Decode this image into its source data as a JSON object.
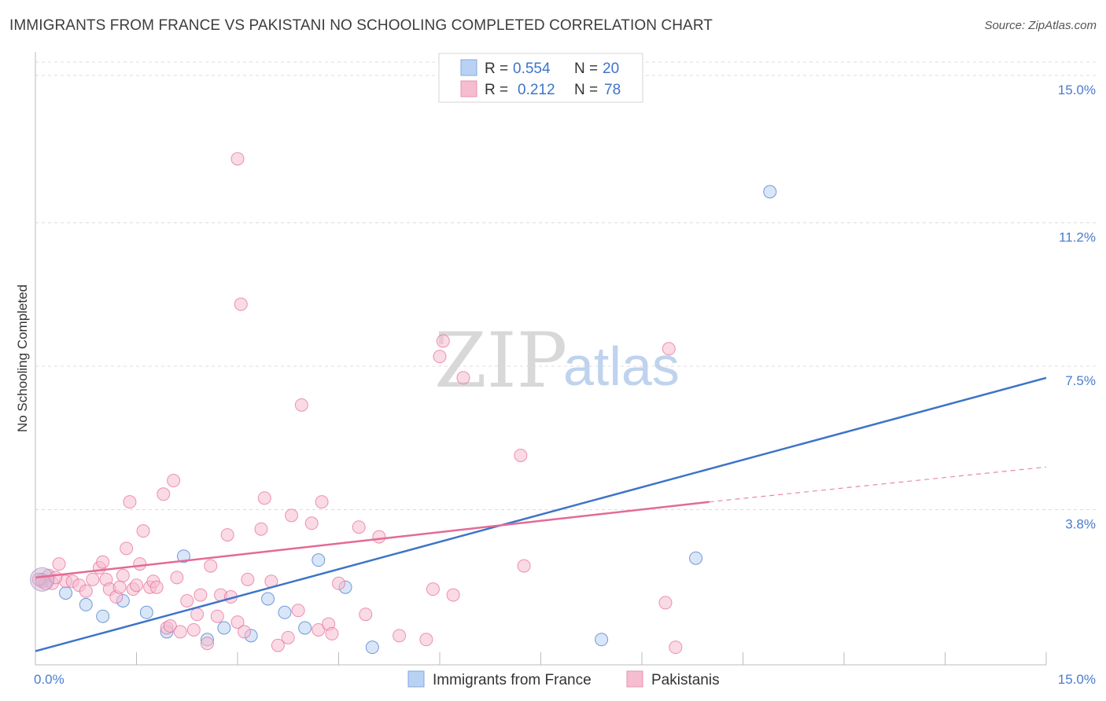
{
  "title": "IMMIGRANTS FROM FRANCE VS PAKISTANI NO SCHOOLING COMPLETED CORRELATION CHART",
  "source": "Source: ZipAtlas.com",
  "watermark": {
    "zip": "ZIP",
    "atlas": "atlas"
  },
  "colors": {
    "blue": "#3d74c8",
    "blue_fill": "#b9d2f3",
    "pink": "#e46a95",
    "pink_fill": "#f6bcd0",
    "grid": "#dcdcdc"
  },
  "legend": {
    "r_label": "R =",
    "n_label": "N =",
    "series": [
      {
        "r": "0.554",
        "n": "20"
      },
      {
        "r": "0.212",
        "n": "78"
      }
    ]
  },
  "chart_data": {
    "type": "scatter",
    "xlabel": "",
    "ylabel": "No Schooling Completed",
    "xlim": [
      0,
      15
    ],
    "ylim": [
      0,
      15
    ],
    "x_tick_labels": [
      {
        "value": 0,
        "label": "0.0%"
      },
      {
        "value": 15,
        "label": "15.0%"
      }
    ],
    "y_tick_labels": [
      {
        "value": 3.8,
        "label": "3.8%"
      },
      {
        "value": 7.5,
        "label": "7.5%"
      },
      {
        "value": 11.2,
        "label": "11.2%"
      },
      {
        "value": 15.0,
        "label": "15.0%"
      }
    ],
    "series": [
      {
        "name": "Immigrants from France",
        "color": "blue",
        "points": [
          [
            0.1,
            2.0
          ],
          [
            0.45,
            1.65
          ],
          [
            0.75,
            1.35
          ],
          [
            1.0,
            1.05
          ],
          [
            1.3,
            1.45
          ],
          [
            1.65,
            1.15
          ],
          [
            1.95,
            0.65
          ],
          [
            2.2,
            2.6
          ],
          [
            2.55,
            0.45
          ],
          [
            2.8,
            0.75
          ],
          [
            3.2,
            0.55
          ],
          [
            3.45,
            1.5
          ],
          [
            3.7,
            1.15
          ],
          [
            4.0,
            0.75
          ],
          [
            4.2,
            2.5
          ],
          [
            4.6,
            1.8
          ],
          [
            5.0,
            0.25
          ],
          [
            8.4,
            0.45
          ],
          [
            9.8,
            2.55
          ],
          [
            10.9,
            12.0
          ]
        ],
        "trend": {
          "x0": 0,
          "y0": 0.15,
          "x1": 15,
          "y1": 7.2
        }
      },
      {
        "name": "Pakistanis",
        "color": "pink",
        "points": [
          [
            0.1,
            1.95
          ],
          [
            0.2,
            2.1
          ],
          [
            0.25,
            1.9
          ],
          [
            0.35,
            2.4
          ],
          [
            0.45,
            1.95
          ],
          [
            0.55,
            1.95
          ],
          [
            0.65,
            1.85
          ],
          [
            0.75,
            1.7
          ],
          [
            0.85,
            2.0
          ],
          [
            0.95,
            2.3
          ],
          [
            1.0,
            2.45
          ],
          [
            1.05,
            2.0
          ],
          [
            1.1,
            1.75
          ],
          [
            1.2,
            1.55
          ],
          [
            1.25,
            1.8
          ],
          [
            1.35,
            2.8
          ],
          [
            1.3,
            2.1
          ],
          [
            1.4,
            4.0
          ],
          [
            1.45,
            1.75
          ],
          [
            1.5,
            1.85
          ],
          [
            1.55,
            2.4
          ],
          [
            1.6,
            3.25
          ],
          [
            1.7,
            1.8
          ],
          [
            1.75,
            1.95
          ],
          [
            1.8,
            1.8
          ],
          [
            1.9,
            4.2
          ],
          [
            1.95,
            0.75
          ],
          [
            2.0,
            0.8
          ],
          [
            2.05,
            4.55
          ],
          [
            2.1,
            2.05
          ],
          [
            2.15,
            0.65
          ],
          [
            2.25,
            1.45
          ],
          [
            2.35,
            0.7
          ],
          [
            2.4,
            1.1
          ],
          [
            2.45,
            1.6
          ],
          [
            2.55,
            0.35
          ],
          [
            2.6,
            2.35
          ],
          [
            2.7,
            1.05
          ],
          [
            2.75,
            1.6
          ],
          [
            2.85,
            3.15
          ],
          [
            2.9,
            1.55
          ],
          [
            3.0,
            0.9
          ],
          [
            3.1,
            0.65
          ],
          [
            3.0,
            12.85
          ],
          [
            3.05,
            9.1
          ],
          [
            3.15,
            2.0
          ],
          [
            3.35,
            3.3
          ],
          [
            3.4,
            4.1
          ],
          [
            3.5,
            1.95
          ],
          [
            3.6,
            0.3
          ],
          [
            3.75,
            0.5
          ],
          [
            3.8,
            3.65
          ],
          [
            3.9,
            1.2
          ],
          [
            3.95,
            6.5
          ],
          [
            4.1,
            3.45
          ],
          [
            4.2,
            0.7
          ],
          [
            4.25,
            4.0
          ],
          [
            4.35,
            0.85
          ],
          [
            4.4,
            0.6
          ],
          [
            4.5,
            1.9
          ],
          [
            4.8,
            3.35
          ],
          [
            4.9,
            1.1
          ],
          [
            5.1,
            3.1
          ],
          [
            5.4,
            0.55
          ],
          [
            5.8,
            0.45
          ],
          [
            5.9,
            1.75
          ],
          [
            6.0,
            7.75
          ],
          [
            6.05,
            8.15
          ],
          [
            6.2,
            1.6
          ],
          [
            6.35,
            7.2
          ],
          [
            7.2,
            5.2
          ],
          [
            7.25,
            2.35
          ],
          [
            9.35,
            1.4
          ],
          [
            9.4,
            7.95
          ],
          [
            9.5,
            0.25
          ],
          [
            0.15,
            1.9
          ],
          [
            0.3,
            2.05
          ],
          [
            0.05,
            2.0
          ]
        ],
        "trend": {
          "x0": 0,
          "y0": 2.05,
          "x1": 10.0,
          "y1": 4.0
        },
        "trend_extension": {
          "x0": 10.0,
          "y0": 4.0,
          "x1": 15,
          "y1": 4.9
        }
      }
    ]
  }
}
